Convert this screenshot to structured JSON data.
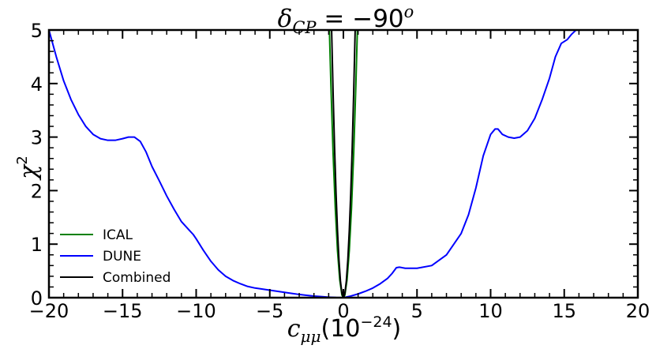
{
  "chart_data": {
    "type": "line",
    "title": {
      "base": "δ",
      "sub": "CP",
      "rest": " = −90",
      "sup": "o"
    },
    "xlabel": {
      "base": "c",
      "sub": "μμ",
      "rest": "(10",
      "sup": "−24",
      "close": ")"
    },
    "ylabel": {
      "base": "χ",
      "sup": "2"
    },
    "xlim": [
      -20,
      20
    ],
    "ylim": [
      0,
      5
    ],
    "x_ticks": [
      -20,
      -15,
      -10,
      -5,
      0,
      5,
      10,
      15,
      20
    ],
    "y_ticks": [
      0,
      1,
      2,
      3,
      4,
      5
    ],
    "x_tick_labels": [
      "−20",
      "−15",
      "−10",
      "−5",
      "0",
      "5",
      "10",
      "15",
      "20"
    ],
    "y_tick_labels": [
      "0",
      "1",
      "2",
      "3",
      "4",
      "5"
    ],
    "grid": false,
    "legend_position": "lower-left",
    "series": [
      {
        "name": "ICAL",
        "color": "#008000",
        "x": [
          -0.95,
          -0.85,
          -0.7,
          -0.55,
          -0.4,
          -0.25,
          -0.1,
          0,
          0.1,
          0.25,
          0.4,
          0.55,
          0.7,
          0.85,
          0.95
        ],
        "y": [
          5.0,
          4.0,
          2.7,
          1.67,
          0.88,
          0.34,
          0.05,
          0.0,
          0.05,
          0.34,
          0.88,
          1.67,
          2.7,
          4.0,
          5.0
        ]
      },
      {
        "name": "DUNE",
        "color": "#0000ff",
        "x": [
          -20,
          -19.5,
          -19,
          -18.5,
          -18,
          -17.5,
          -17,
          -16.5,
          -16,
          -15.5,
          -15,
          -14.6,
          -14.2,
          -13.8,
          -13.4,
          -13,
          -12.5,
          -12,
          -11.5,
          -11,
          -10.5,
          -10.2,
          -10,
          -9.5,
          -9,
          -8.5,
          -8,
          -7.5,
          -7,
          -6.5,
          -6,
          -5.5,
          -5,
          -4.5,
          -4,
          -3.5,
          -3,
          -2.5,
          -2,
          -1.5,
          -1,
          -0.5,
          0,
          0.5,
          1,
          1.5,
          2,
          2.5,
          3,
          3.3,
          3.6,
          3.8,
          4.2,
          5,
          6,
          7,
          8,
          8.5,
          9,
          9.5,
          10,
          10.3,
          10.5,
          10.8,
          11.2,
          11.6,
          12,
          12.5,
          13,
          13.5,
          14,
          14.4,
          14.8,
          15.2,
          15.5,
          15.8
        ],
        "y": [
          5.0,
          4.5,
          4.05,
          3.7,
          3.42,
          3.2,
          3.05,
          2.97,
          2.94,
          2.94,
          2.97,
          3.0,
          3.0,
          2.92,
          2.72,
          2.45,
          2.18,
          1.9,
          1.65,
          1.42,
          1.27,
          1.18,
          1.1,
          0.88,
          0.68,
          0.52,
          0.4,
          0.32,
          0.26,
          0.21,
          0.18,
          0.16,
          0.14,
          0.12,
          0.1,
          0.08,
          0.06,
          0.045,
          0.03,
          0.02,
          0.01,
          0.003,
          0.0,
          0.03,
          0.07,
          0.12,
          0.18,
          0.26,
          0.36,
          0.45,
          0.56,
          0.57,
          0.55,
          0.55,
          0.6,
          0.8,
          1.2,
          1.55,
          2.05,
          2.65,
          3.05,
          3.15,
          3.15,
          3.05,
          3.0,
          2.98,
          3.0,
          3.12,
          3.35,
          3.7,
          4.1,
          4.5,
          4.75,
          4.82,
          4.92,
          5.0
        ]
      },
      {
        "name": "Combined",
        "color": "#000000",
        "x": [
          -0.8,
          -0.7,
          -0.6,
          -0.5,
          -0.4,
          -0.3,
          -0.2,
          -0.1,
          0,
          0.1,
          0.2,
          0.3,
          0.4,
          0.5,
          0.6,
          0.7,
          0.8
        ],
        "y": [
          5.0,
          3.83,
          2.81,
          1.95,
          1.25,
          0.7,
          0.31,
          0.08,
          0.0,
          0.08,
          0.31,
          0.7,
          1.25,
          1.95,
          2.81,
          3.83,
          5.0
        ]
      }
    ]
  }
}
